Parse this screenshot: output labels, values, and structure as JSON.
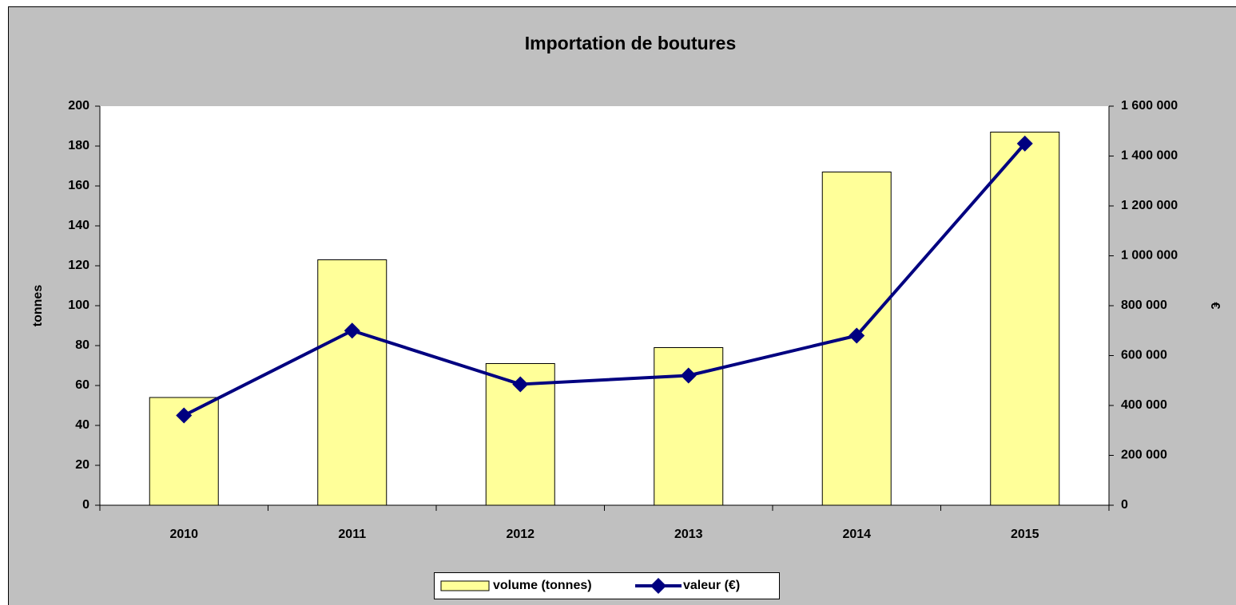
{
  "chart_data": {
    "type": "bar-line",
    "title": "Importation de boutures",
    "categories": [
      "2010",
      "2011",
      "2012",
      "2013",
      "2014",
      "2015"
    ],
    "series": [
      {
        "name": "volume (tonnes)",
        "type": "bar",
        "color": "#ffff99",
        "values": [
          54,
          123,
          71,
          79,
          167,
          187
        ]
      },
      {
        "name": "valeur (€)",
        "type": "line",
        "axis": "y2",
        "color": "#000080",
        "values": [
          360000,
          700000,
          485000,
          520000,
          680000,
          1450000
        ]
      }
    ],
    "ylabel": "tonnes",
    "y2label": "€",
    "ylim": [
      0,
      200
    ],
    "yticks": [
      0,
      20,
      40,
      60,
      80,
      100,
      120,
      140,
      160,
      180,
      200
    ],
    "y2lim": [
      0,
      1600000
    ],
    "y2ticks": [
      0,
      {
        "value": 200000,
        "label": "200 000"
      },
      {
        "value": 400000,
        "label": "400 000"
      },
      {
        "value": 600000,
        "label": "600 000"
      },
      {
        "value": 800000,
        "label": "800 000"
      },
      {
        "value": 1000000,
        "label": "1 000 000"
      },
      {
        "value": 1200000,
        "label": "1 200 000"
      },
      {
        "value": 1400000,
        "label": "1 400 000"
      },
      {
        "value": 1600000,
        "label": "1 600 000"
      }
    ],
    "legend": "bottom",
    "grid": false
  }
}
